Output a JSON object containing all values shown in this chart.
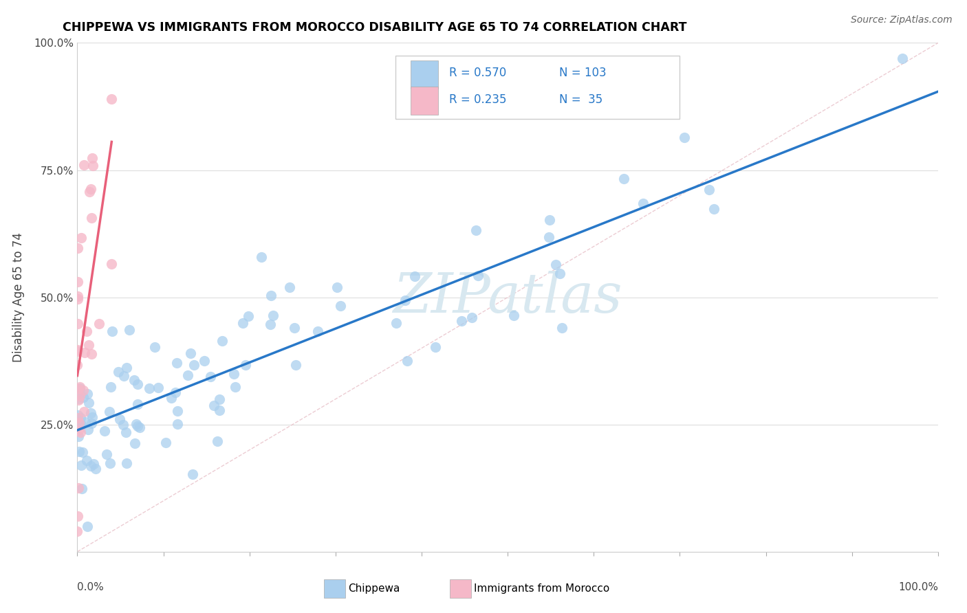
{
  "title": "CHIPPEWA VS IMMIGRANTS FROM MOROCCO DISABILITY AGE 65 TO 74 CORRELATION CHART",
  "source_text": "Source: ZipAtlas.com",
  "ylabel": "Disability Age 65 to 74",
  "chippewa_R": 0.57,
  "chippewa_N": 103,
  "morocco_R": 0.235,
  "morocco_N": 35,
  "chippewa_color": "#aacfee",
  "chippewa_line_color": "#2878c8",
  "morocco_color": "#f5b8c8",
  "morocco_line_color": "#e8607a",
  "diagonal_color": "#e8c0c8",
  "watermark_color": "#d8e8f0",
  "bg_color": "#ffffff"
}
